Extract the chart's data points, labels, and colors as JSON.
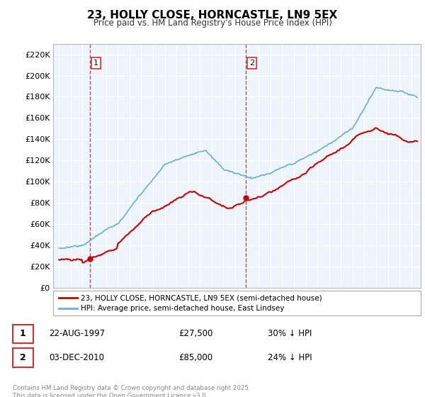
{
  "title": "23, HOLLY CLOSE, HORNCASTLE, LN9 5EX",
  "subtitle": "Price paid vs. HM Land Registry's House Price Index (HPI)",
  "legend_line1": "23, HOLLY CLOSE, HORNCASTLE, LN9 5EX (semi-detached house)",
  "legend_line2": "HPI: Average price, semi-detached house, East Lindsey",
  "sale1_date": "22-AUG-1997",
  "sale1_price": "£27,500",
  "sale1_hpi": "30% ↓ HPI",
  "sale1_year": 1997.64,
  "sale1_value": 27500,
  "sale2_date": "03-DEC-2010",
  "sale2_price": "£85,000",
  "sale2_hpi": "24% ↓ HPI",
  "sale2_year": 2010.92,
  "sale2_value": 85000,
  "hpi_color": "#6baed6",
  "price_color": "#cc0000",
  "vline_color": "#cc3333",
  "marker_color": "#cc0000",
  "ylim_min": 0,
  "ylim_max": 230000,
  "ytick_step": 20000,
  "xmin": 1994.5,
  "xmax": 2025.8,
  "footer": "Contains HM Land Registry data © Crown copyright and database right 2025.\nThis data is licensed under the Open Government Licence v3.0.",
  "background_color": "#ffffff",
  "plot_bg_color": "#eef4fb",
  "grid_color": "#ffffff"
}
